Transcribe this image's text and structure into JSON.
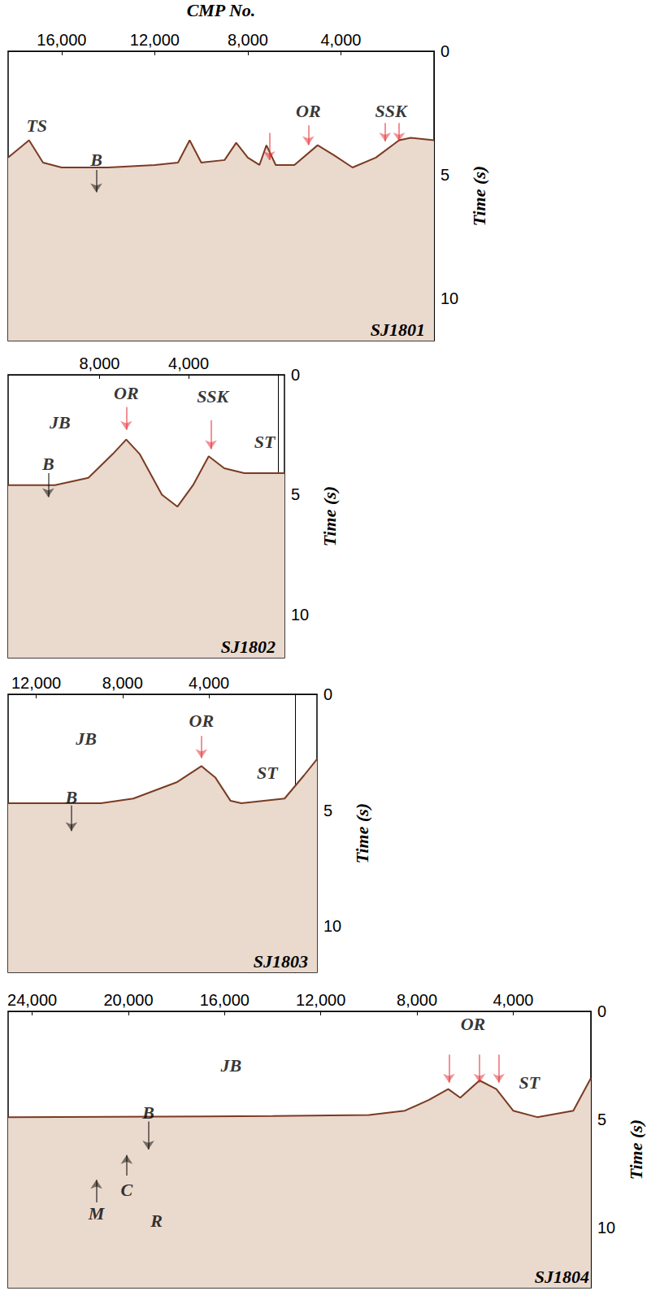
{
  "chart_data": [
    {
      "type": "line",
      "title": "SJ1801",
      "x_label": "CMP No.",
      "y_label": "Time (s)",
      "xlim": [
        18300,
        0
      ],
      "xticks": [
        16000,
        12000,
        8000,
        4000
      ],
      "ylim": [
        0,
        11.7
      ],
      "yticks": [
        0,
        5,
        10
      ],
      "grid": false,
      "color": "#7a3b22",
      "x": [
        18300,
        17400,
        16800,
        16000,
        14000,
        12000,
        11000,
        10500,
        10000,
        9000,
        8500,
        8000,
        7500,
        7200,
        6800,
        6000,
        5000,
        4300,
        3500,
        2500,
        1500,
        1000,
        0
      ],
      "values": [
        4.3,
        3.6,
        4.5,
        4.7,
        4.7,
        4.6,
        4.5,
        3.6,
        4.5,
        4.4,
        3.7,
        4.3,
        4.6,
        3.8,
        4.6,
        4.6,
        3.8,
        4.2,
        4.7,
        4.3,
        3.6,
        3.5,
        3.6
      ],
      "annotations": [
        {
          "text": "TS",
          "x": 17070,
          "y": 3.0
        },
        {
          "text": "B",
          "x": 14510,
          "y": 4.4
        },
        {
          "text": "OR",
          "x": 5400,
          "y": 2.4
        },
        {
          "text": "SSK",
          "x": 1850,
          "y": 2.4
        }
      ],
      "arrows": [
        {
          "x": 14510,
          "y": [
            4.8,
            5.7
          ],
          "color": "#000000"
        },
        {
          "x": 7080,
          "y": [
            3.3,
            4.4
          ],
          "color": "#e3262b"
        },
        {
          "x": 5400,
          "y": [
            3.0,
            3.8
          ],
          "color": "#e3262b"
        },
        {
          "x": 2100,
          "y": [
            2.9,
            3.65
          ],
          "color": "#e3262b"
        },
        {
          "x": 1500,
          "y": [
            2.9,
            3.65
          ],
          "color": "#e3262b"
        }
      ]
    },
    {
      "type": "line",
      "title": "SJ1802",
      "y_label": "Time (s)",
      "xlim": [
        12100,
        -300
      ],
      "xticks": [
        8000,
        4000
      ],
      "ylim": [
        0,
        11.8
      ],
      "yticks": [
        0,
        5,
        10
      ],
      "grid": false,
      "color": "#7a3b22",
      "x": [
        12100,
        10000,
        8500,
        7400,
        6800,
        6200,
        5200,
        4500,
        3800,
        3100,
        2400,
        1500,
        -300
      ],
      "values": [
        4.6,
        4.6,
        4.3,
        3.3,
        2.7,
        3.3,
        5.0,
        5.5,
        4.6,
        3.4,
        3.9,
        4.1,
        4.1
      ],
      "annotations": [
        {
          "text": "JB",
          "x": 9770,
          "y": 2.0
        },
        {
          "text": "OR",
          "x": 6800,
          "y": 0.75
        },
        {
          "text": "SSK",
          "x": 2920,
          "y": 0.9
        },
        {
          "text": "ST",
          "x": 590,
          "y": 2.8
        },
        {
          "text": "B",
          "x": 10300,
          "y": 3.7
        }
      ],
      "arrows": [
        {
          "x": 6800,
          "y": [
            1.35,
            2.3
          ],
          "color": "#e3262b"
        },
        {
          "x": 3000,
          "y": [
            1.9,
            3.1
          ],
          "color": "#e3262b"
        },
        {
          "x": 10300,
          "y": [
            4.1,
            5.1
          ],
          "color": "#000000"
        }
      ]
    },
    {
      "type": "line",
      "title": "SJ1803",
      "y_label": "Time (s)",
      "xlim": [
        13300,
        -1000
      ],
      "xticks": [
        12000,
        8000,
        4000
      ],
      "ylim": [
        0,
        12
      ],
      "yticks": [
        0,
        5,
        10
      ],
      "grid": false,
      "color": "#7a3b22",
      "x": [
        13300,
        9000,
        7500,
        5500,
        4350,
        3700,
        3000,
        2500,
        500,
        -400,
        -1000
      ],
      "values": [
        4.7,
        4.7,
        4.5,
        3.8,
        3.1,
        3.6,
        4.6,
        4.7,
        4.5,
        3.5,
        2.8
      ],
      "annotations": [
        {
          "text": "JB",
          "x": 9680,
          "y": 1.9
        },
        {
          "text": "OR",
          "x": 4350,
          "y": 1.15
        },
        {
          "text": "ST",
          "x": 1300,
          "y": 3.4
        },
        {
          "text": "B",
          "x": 10370,
          "y": 4.45
        }
      ],
      "arrows": [
        {
          "x": 4350,
          "y": [
            1.8,
            2.75
          ],
          "color": "#e3262b"
        },
        {
          "x": 10370,
          "y": [
            4.8,
            5.9
          ],
          "color": "#000000"
        }
      ]
    },
    {
      "type": "line",
      "title": "SJ1804",
      "y_label": "Time (s)",
      "xlim": [
        25000,
        770
      ],
      "xticks": [
        24000,
        20000,
        16000,
        12000,
        8000,
        4000
      ],
      "ylim": [
        0,
        12.8
      ],
      "yticks": [
        0,
        5,
        10
      ],
      "grid": false,
      "color": "#7a3b22",
      "x": [
        25000,
        14000,
        10000,
        8500,
        7500,
        6700,
        6200,
        5400,
        4700,
        4000,
        3000,
        1500,
        770
      ],
      "values": [
        4.9,
        4.85,
        4.8,
        4.6,
        4.1,
        3.6,
        4.0,
        3.2,
        3.6,
        4.6,
        4.9,
        4.6,
        3.1
      ],
      "annotations": [
        {
          "text": "JB",
          "x": 15730,
          "y": 2.5
        },
        {
          "text": "OR",
          "x": 5670,
          "y": 0.6
        },
        {
          "text": "ST",
          "x": 3330,
          "y": 3.3
        },
        {
          "text": "B",
          "x": 19170,
          "y": 4.7
        },
        {
          "text": "C",
          "x": 20070,
          "y": 8.25
        },
        {
          "text": "M",
          "x": 21330,
          "y": 9.35
        },
        {
          "text": "R",
          "x": 18830,
          "y": 9.7
        }
      ],
      "arrows": [
        {
          "x": 6670,
          "y": [
            2.0,
            3.3
          ],
          "color": "#e3262b"
        },
        {
          "x": 5400,
          "y": [
            2.0,
            3.3
          ],
          "color": "#e3262b"
        },
        {
          "x": 4600,
          "y": [
            2.0,
            3.3
          ],
          "color": "#e3262b"
        },
        {
          "x": 19170,
          "y": [
            5.1,
            6.4
          ],
          "color": "#000000"
        },
        {
          "x": 20070,
          "y": [
            7.6,
            6.65
          ],
          "color": "#000000"
        },
        {
          "x": 21330,
          "y": [
            8.85,
            7.8
          ],
          "color": "#000000"
        }
      ]
    }
  ]
}
